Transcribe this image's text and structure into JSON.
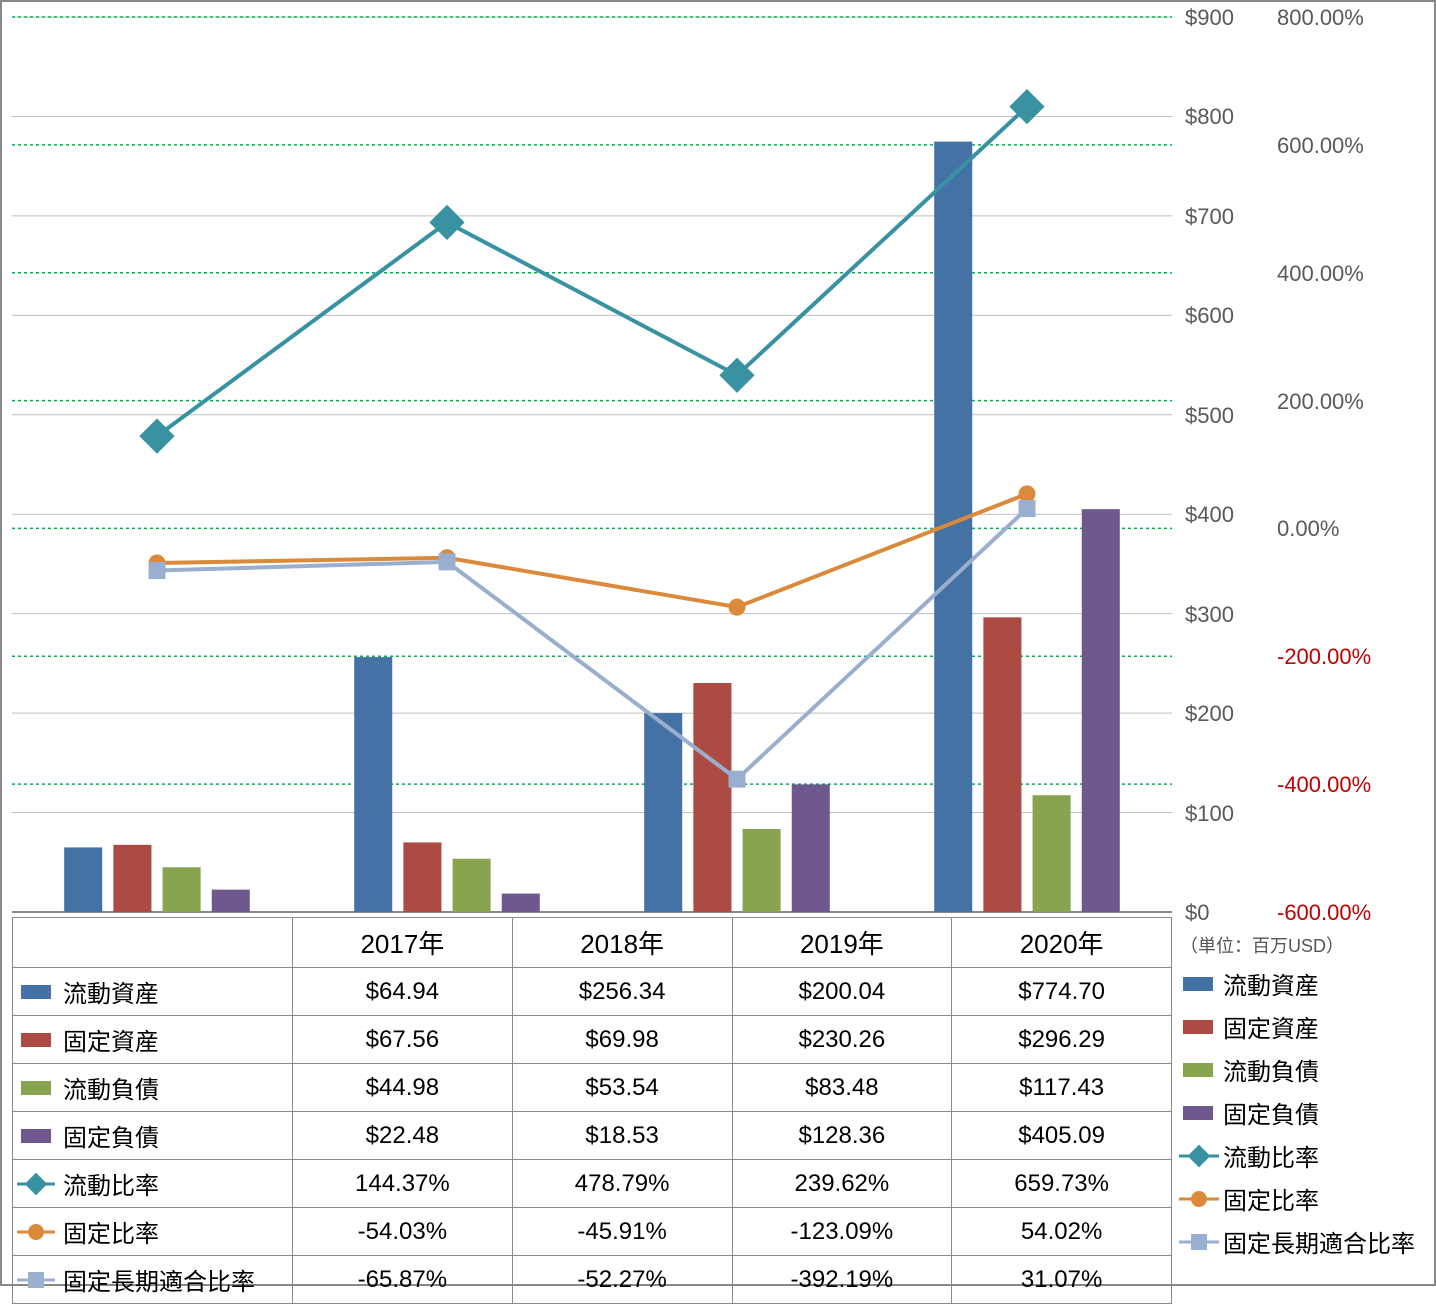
{
  "chart": {
    "type": "combo-bar-line",
    "categories": [
      "2017年",
      "2018年",
      "2019年",
      "2020年"
    ],
    "unit_label": "（単位：百万USD）",
    "bar_series": [
      {
        "key": "current_assets",
        "label": "流動資産",
        "color": "#4472a4",
        "values": [
          64.94,
          256.34,
          200.04,
          774.7
        ],
        "display": [
          "$64.94",
          "$256.34",
          "$200.04",
          "$774.70"
        ]
      },
      {
        "key": "fixed_assets",
        "label": "固定資産",
        "color": "#ac4a44",
        "values": [
          67.56,
          69.98,
          230.26,
          296.29
        ],
        "display": [
          "$67.56",
          "$69.98",
          "$230.26",
          "$296.29"
        ]
      },
      {
        "key": "current_liab",
        "label": "流動負債",
        "color": "#89a44e",
        "values": [
          44.98,
          53.54,
          83.48,
          117.43
        ],
        "display": [
          "$44.98",
          "$53.54",
          "$83.48",
          "$117.43"
        ]
      },
      {
        "key": "fixed_liab",
        "label": "固定負債",
        "color": "#6e588e",
        "values": [
          22.48,
          18.53,
          128.36,
          405.09
        ],
        "display": [
          "$22.48",
          "$18.53",
          "$128.36",
          "$405.09"
        ]
      }
    ],
    "line_series": [
      {
        "key": "current_ratio",
        "label": "流動比率",
        "color": "#3892a2",
        "marker": "diamond",
        "marker_size": 22,
        "line_width": 4,
        "values": [
          144.37,
          478.79,
          239.62,
          659.73
        ],
        "display": [
          "144.37%",
          "478.79%",
          "239.62%",
          "659.73%"
        ]
      },
      {
        "key": "fixed_ratio",
        "label": "固定比率",
        "color": "#da8a3a",
        "marker": "circle",
        "marker_size": 16,
        "line_width": 4,
        "values": [
          -54.03,
          -45.91,
          -123.09,
          54.02
        ],
        "display": [
          "-54.03%",
          "-45.91%",
          "-123.09%",
          "54.02%"
        ]
      },
      {
        "key": "fixed_long",
        "label": "固定長期適合比率",
        "color": "#9aaed0",
        "marker": "square",
        "marker_size": 16,
        "line_width": 4,
        "values": [
          -65.87,
          -52.27,
          -392.19,
          31.07
        ],
        "display": [
          "-65.87%",
          "-52.27%",
          "-392.19%",
          "31.07%"
        ]
      }
    ],
    "left_axis": {
      "min": 0,
      "max": 900,
      "step": 100,
      "format": "$",
      "color": "#595959",
      "gridline_color": "#bfbfbf",
      "fontsize": 22
    },
    "right_axis": {
      "min": -600,
      "max": 800,
      "step": 200,
      "format": "%",
      "fontsize": 22,
      "pos_color": "#595959",
      "neg_color": "#c00000",
      "zero_color": "#595959",
      "gridline_color": "#00b050",
      "gridline_dash": "3,3"
    },
    "background_color": "#ffffff",
    "bar_group_gap": 0.18,
    "bar_width_rel": 0.16
  },
  "legend": {
    "items": [
      {
        "type": "bar",
        "color": "#4472a4",
        "label": "流動資産"
      },
      {
        "type": "bar",
        "color": "#ac4a44",
        "label": "固定資産"
      },
      {
        "type": "bar",
        "color": "#89a44e",
        "label": "流動負債"
      },
      {
        "type": "bar",
        "color": "#6e588e",
        "label": "固定負債"
      },
      {
        "type": "line",
        "color": "#3892a2",
        "marker": "diamond",
        "label": "流動比率"
      },
      {
        "type": "line",
        "color": "#da8a3a",
        "marker": "circle",
        "label": "固定比率"
      },
      {
        "type": "line",
        "color": "#9aaed0",
        "marker": "square",
        "label": "固定長期適合比率"
      }
    ]
  }
}
